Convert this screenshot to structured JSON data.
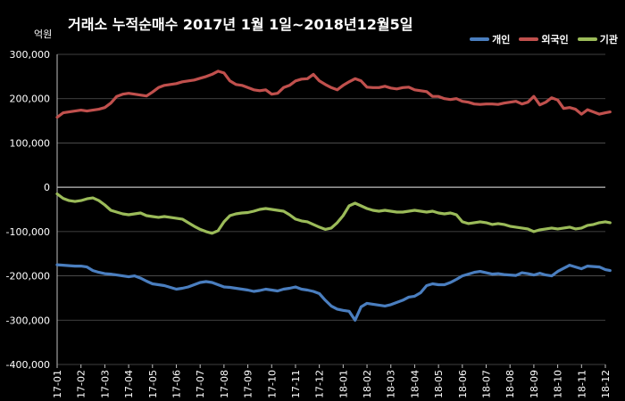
{
  "chart_data": {
    "type": "line",
    "title": "거래소 누적순매수 2017년 1월 1일~2018년12월5일",
    "ylabel": "억원",
    "ylim": [
      -400000,
      300000
    ],
    "yticks": [
      "300,000",
      "200,000",
      "100,000",
      "0",
      "-100,000",
      "-200,000",
      "-300,000",
      "-400,000"
    ],
    "ytick_values": [
      300000,
      200000,
      100000,
      0,
      -100000,
      -200000,
      -300000,
      -400000
    ],
    "xticks": [
      "17-01",
      "17-02",
      "17-03",
      "17-04",
      "17-05",
      "17-06",
      "17-07",
      "17-08",
      "17-09",
      "17-10",
      "17-11",
      "17-12",
      "18-01",
      "18-02",
      "18-03",
      "18-04",
      "18-05",
      "18-06",
      "18-07",
      "18-08",
      "18-09",
      "18-10",
      "18-11",
      "18-12"
    ],
    "grid": true,
    "legend_position": "top-right",
    "x": [
      0,
      0.25,
      0.5,
      0.75,
      1,
      1.25,
      1.5,
      1.75,
      2,
      2.25,
      2.5,
      2.75,
      3,
      3.25,
      3.5,
      3.75,
      4,
      4.25,
      4.5,
      4.75,
      5,
      5.25,
      5.5,
      5.75,
      6,
      6.25,
      6.5,
      6.75,
      7,
      7.25,
      7.5,
      7.75,
      8,
      8.25,
      8.5,
      8.75,
      9,
      9.25,
      9.5,
      9.75,
      10,
      10.25,
      10.5,
      10.75,
      11,
      11.25,
      11.5,
      11.75,
      12,
      12.25,
      12.5,
      12.75,
      13,
      13.25,
      13.5,
      13.75,
      14,
      14.25,
      14.5,
      14.75,
      15,
      15.25,
      15.5,
      15.75,
      16,
      16.25,
      16.5,
      16.75,
      17,
      17.25,
      17.5,
      17.75,
      18,
      18.25,
      18.5,
      18.75,
      19,
      19.25,
      19.5,
      19.75,
      20,
      20.25,
      20.5,
      20.75,
      21,
      21.25,
      21.5,
      21.75,
      22,
      22.25,
      22.5,
      22.75,
      23,
      23.2
    ],
    "series": [
      {
        "name": "개인",
        "color": "#4a7ebf",
        "values": [
          -175000,
          -176000,
          -177000,
          -178000,
          -178000,
          -180000,
          -188000,
          -192000,
          -195000,
          -196000,
          -198000,
          -200000,
          -202000,
          -200000,
          -205000,
          -212000,
          -218000,
          -220000,
          -222000,
          -226000,
          -230000,
          -228000,
          -225000,
          -220000,
          -215000,
          -213000,
          -215000,
          -220000,
          -225000,
          -226000,
          -228000,
          -230000,
          -232000,
          -235000,
          -233000,
          -230000,
          -232000,
          -234000,
          -230000,
          -228000,
          -225000,
          -230000,
          -232000,
          -235000,
          -240000,
          -255000,
          -268000,
          -275000,
          -278000,
          -280000,
          -300000,
          -270000,
          -262000,
          -264000,
          -266000,
          -268000,
          -265000,
          -260000,
          -255000,
          -248000,
          -246000,
          -238000,
          -222000,
          -218000,
          -220000,
          -220000,
          -215000,
          -208000,
          -200000,
          -196000,
          -192000,
          -190000,
          -193000,
          -196000,
          -195000,
          -197000,
          -198000,
          -199000,
          -193000,
          -195000,
          -198000,
          -194000,
          -198000,
          -200000,
          -190000,
          -183000,
          -176000,
          -180000,
          -184000,
          -178000,
          -179000,
          -180000,
          -186000,
          -188000
        ]
      },
      {
        "name": "외국인",
        "color": "#c0504d",
        "values": [
          158000,
          168000,
          170000,
          172000,
          174000,
          172000,
          174000,
          176000,
          180000,
          190000,
          205000,
          210000,
          212000,
          210000,
          208000,
          206000,
          215000,
          225000,
          230000,
          232000,
          234000,
          238000,
          240000,
          242000,
          246000,
          250000,
          255000,
          262000,
          258000,
          240000,
          232000,
          230000,
          225000,
          220000,
          218000,
          220000,
          210000,
          212000,
          225000,
          230000,
          240000,
          244000,
          245000,
          255000,
          240000,
          232000,
          225000,
          220000,
          230000,
          238000,
          245000,
          240000,
          226000,
          225000,
          225000,
          228000,
          224000,
          222000,
          225000,
          226000,
          220000,
          218000,
          216000,
          205000,
          205000,
          200000,
          198000,
          200000,
          194000,
          192000,
          188000,
          187000,
          188000,
          188000,
          187000,
          190000,
          192000,
          194000,
          188000,
          192000,
          205000,
          186000,
          192000,
          202000,
          197000,
          178000,
          180000,
          176000,
          165000,
          175000,
          170000,
          165000,
          168000,
          170000
        ]
      },
      {
        "name": "기관",
        "color": "#9bbb59",
        "values": [
          -15000,
          -25000,
          -30000,
          -32000,
          -30000,
          -26000,
          -24000,
          -30000,
          -40000,
          -52000,
          -56000,
          -60000,
          -62000,
          -60000,
          -58000,
          -64000,
          -66000,
          -68000,
          -66000,
          -68000,
          -70000,
          -72000,
          -80000,
          -88000,
          -95000,
          -100000,
          -104000,
          -98000,
          -78000,
          -64000,
          -60000,
          -58000,
          -57000,
          -54000,
          -50000,
          -48000,
          -50000,
          -52000,
          -54000,
          -62000,
          -72000,
          -76000,
          -78000,
          -84000,
          -90000,
          -95000,
          -92000,
          -80000,
          -64000,
          -42000,
          -36000,
          -42000,
          -48000,
          -52000,
          -54000,
          -52000,
          -54000,
          -56000,
          -56000,
          -54000,
          -52000,
          -54000,
          -56000,
          -54000,
          -58000,
          -60000,
          -58000,
          -62000,
          -78000,
          -82000,
          -80000,
          -78000,
          -80000,
          -84000,
          -82000,
          -84000,
          -88000,
          -90000,
          -92000,
          -94000,
          -100000,
          -96000,
          -94000,
          -92000,
          -94000,
          -92000,
          -90000,
          -94000,
          -92000,
          -86000,
          -84000,
          -80000,
          -78000,
          -80000
        ]
      }
    ]
  }
}
